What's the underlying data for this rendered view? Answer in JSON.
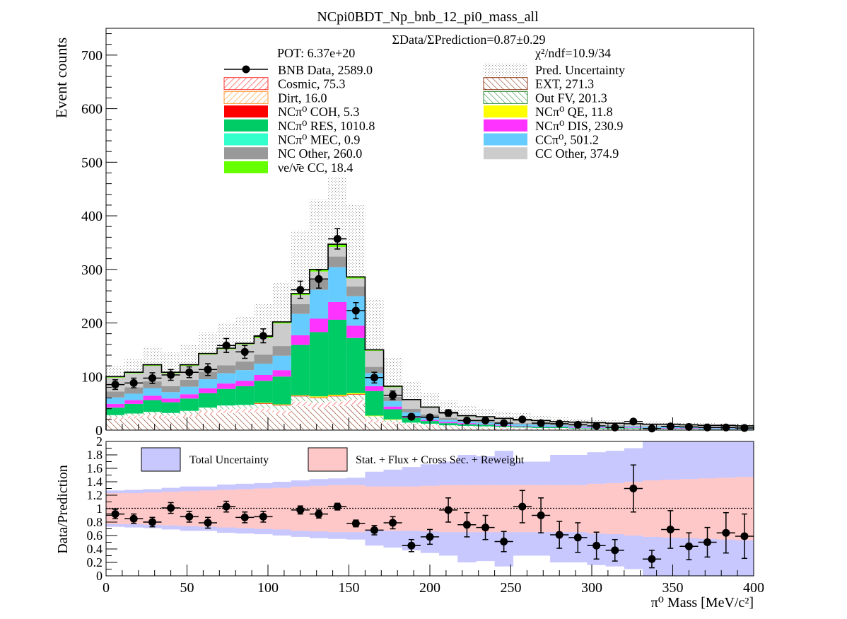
{
  "chart_data": [
    {
      "type": "bar",
      "stacked": true,
      "title": "NCpi0BDT_Np_bnb_12_pi0_mass_all",
      "ylabel": "Event counts",
      "ylim": [
        0,
        750
      ],
      "yticks": [
        0,
        100,
        200,
        300,
        400,
        500,
        600,
        700
      ],
      "xlim": [
        0,
        400
      ],
      "bin_edges": [
        0,
        11.43,
        22.86,
        34.29,
        45.71,
        57.14,
        68.57,
        80,
        91.43,
        102.86,
        114.29,
        125.71,
        137.14,
        148.57,
        160,
        171.43,
        182.86,
        194.29,
        205.71,
        217.14,
        228.57,
        240,
        251.43,
        262.86,
        274.29,
        285.71,
        297.14,
        308.57,
        320,
        331.43,
        342.86,
        354.29,
        365.71,
        377.14,
        388.57,
        400
      ],
      "bin_centers": [
        5.7,
        17.1,
        28.6,
        40,
        51.4,
        62.9,
        74.3,
        85.7,
        97.1,
        108.6,
        120,
        131.4,
        142.9,
        154.3,
        165.7,
        177.1,
        188.6,
        200,
        211.4,
        222.9,
        234.3,
        245.7,
        257.1,
        268.6,
        280,
        291.4,
        302.9,
        314.3,
        325.7,
        337.1,
        348.6,
        360,
        371.4,
        382.9,
        394.3
      ],
      "annotations": {
        "ratio_text": "ΣData/ΣPrediction=0.87±0.29",
        "pot": "POT: 6.37e+20",
        "chi2": "χ²/ndf=10.9/34"
      },
      "legend": [
        {
          "label": "BNB Data, 2589.0",
          "color": "#000000",
          "style": "marker"
        },
        {
          "label": "Pred. Uncertainty",
          "color": "#bdbdbd",
          "style": "dots"
        },
        {
          "label": "Cosmic, 75.3",
          "color": "#ff3333",
          "style": "hatch"
        },
        {
          "label": "EXT, 271.3",
          "color": "#8b3a1a",
          "style": "hatch"
        },
        {
          "label": "Dirt, 16.0",
          "color": "#ff9933",
          "style": "hatch"
        },
        {
          "label": "Out FV, 201.3",
          "color": "#2e8b3a",
          "style": "hatch"
        },
        {
          "label": "NCπ⁰ COH,  5.3",
          "color": "#ff0000",
          "style": "fill"
        },
        {
          "label": "NCπ⁰ QE,  11.8",
          "color": "#ffff00",
          "style": "fill"
        },
        {
          "label": "NCπ⁰ RES,  1010.8",
          "color": "#00cc66",
          "style": "fill"
        },
        {
          "label": "NCπ⁰ DIS,  230.9",
          "color": "#ff33ff",
          "style": "fill"
        },
        {
          "label": "NCπ⁰ MEC,  0.9",
          "color": "#33ffcc",
          "style": "fill"
        },
        {
          "label": "CCπ⁰, 501.2",
          "color": "#66ccff",
          "style": "fill"
        },
        {
          "label": "NC Other, 260.0",
          "color": "#999999",
          "style": "fill"
        },
        {
          "label": "CC Other, 374.9",
          "color": "#cccccc",
          "style": "fill"
        },
        {
          "label": "νe/ν̄e CC, 18.4",
          "color": "#66ff00",
          "style": "fill"
        }
      ],
      "stack_totals": [
        100,
        108,
        122,
        108,
        122,
        143,
        153,
        162,
        175,
        202,
        255,
        300,
        347,
        286,
        150,
        82,
        57,
        43,
        33,
        27,
        25,
        22,
        19,
        18,
        16,
        15,
        14,
        13,
        12,
        11,
        11,
        10,
        9,
        9,
        8
      ],
      "pred_uncertainty_upper": [
        120,
        132,
        155,
        145,
        160,
        182,
        200,
        212,
        235,
        275,
        372,
        430,
        472,
        420,
        245,
        135,
        90,
        70,
        55,
        45,
        40,
        35,
        32,
        28,
        25,
        22,
        20,
        18,
        16,
        16,
        15,
        14,
        13,
        12,
        12
      ],
      "series": [
        {
          "name": "EXT, 271.3",
          "values": [
            20,
            22,
            24,
            22,
            25,
            30,
            32,
            33,
            34,
            30,
            45,
            42,
            45,
            48,
            15,
            12,
            9,
            7,
            6,
            5,
            4,
            3,
            3,
            2,
            2,
            2,
            2,
            2,
            2,
            1,
            1,
            1,
            1,
            1,
            1
          ]
        },
        {
          "name": "Cosmic, 75.3",
          "values": [
            3,
            4,
            4,
            4,
            4,
            5,
            6,
            6,
            6,
            6,
            8,
            8,
            8,
            8,
            4,
            3,
            2,
            2,
            1,
            1,
            1,
            1,
            1,
            1,
            1,
            0,
            0,
            0,
            0,
            0,
            0,
            0,
            0,
            0,
            0
          ]
        },
        {
          "name": "Dirt, 16.0",
          "values": [
            1,
            1,
            1,
            1,
            1,
            1,
            1,
            1,
            1,
            1,
            1,
            1,
            1,
            1,
            1,
            0,
            0,
            0,
            0,
            0,
            0,
            0,
            0,
            0,
            0,
            0,
            0,
            0,
            0,
            0,
            0,
            0,
            0,
            0,
            0
          ]
        },
        {
          "name": "Out FV, 201.3",
          "values": [
            4,
            4,
            5,
            5,
            6,
            6,
            7,
            7,
            8,
            9,
            9,
            9,
            9,
            9,
            6,
            4,
            3,
            3,
            2,
            2,
            2,
            2,
            1,
            1,
            1,
            1,
            1,
            1,
            1,
            1,
            1,
            1,
            0,
            0,
            0
          ]
        },
        {
          "name": "NCπ⁰ COH,  5.3",
          "values": [
            0,
            0,
            0,
            0,
            0,
            0,
            0,
            0,
            1,
            1,
            1,
            1,
            1,
            1,
            0,
            0,
            0,
            0,
            0,
            0,
            0,
            0,
            0,
            0,
            0,
            0,
            0,
            0,
            0,
            0,
            0,
            0,
            0,
            0,
            0
          ]
        },
        {
          "name": "NCπ⁰ QE,  11.8",
          "values": [
            0,
            0,
            0,
            0,
            0,
            0,
            0,
            0,
            1,
            1,
            1,
            2,
            2,
            2,
            1,
            1,
            0,
            0,
            0,
            0,
            0,
            0,
            0,
            0,
            0,
            0,
            0,
            0,
            0,
            0,
            0,
            0,
            0,
            0,
            0
          ]
        },
        {
          "name": "NCπ⁰ RES,  1010.8",
          "values": [
            14,
            18,
            22,
            20,
            23,
            27,
            31,
            35,
            41,
            52,
            94,
            120,
            140,
            103,
            46,
            19,
            9,
            5,
            4,
            3,
            3,
            2,
            2,
            2,
            2,
            1,
            1,
            1,
            1,
            1,
            1,
            1,
            1,
            1,
            1
          ]
        },
        {
          "name": "NCπ⁰ DIS,  230.9",
          "values": [
            7,
            7,
            8,
            7,
            8,
            9,
            10,
            10,
            11,
            12,
            18,
            25,
            33,
            23,
            9,
            5,
            3,
            2,
            2,
            2,
            1,
            1,
            1,
            1,
            1,
            1,
            1,
            1,
            1,
            1,
            1,
            1,
            1,
            1,
            1
          ]
        },
        {
          "name": "NCπ⁰ MEC,  0.9",
          "values": [
            0,
            0,
            0,
            0,
            0,
            0,
            0,
            0,
            0,
            0,
            0,
            0,
            0,
            0,
            0,
            0,
            0,
            0,
            0,
            0,
            0,
            0,
            0,
            0,
            0,
            0,
            0,
            0,
            0,
            0,
            0,
            0,
            0,
            0,
            0
          ]
        },
        {
          "name": "CCπ⁰, 501.2",
          "values": [
            12,
            12,
            14,
            12,
            14,
            17,
            19,
            20,
            21,
            27,
            40,
            54,
            65,
            55,
            24,
            10,
            7,
            5,
            4,
            3,
            3,
            3,
            3,
            3,
            2,
            2,
            2,
            2,
            2,
            2,
            2,
            2,
            2,
            2,
            2
          ]
        },
        {
          "name": "NC Other, 260.0",
          "values": [
            11,
            12,
            13,
            11,
            13,
            14,
            15,
            16,
            17,
            18,
            18,
            19,
            20,
            18,
            12,
            8,
            7,
            5,
            4,
            3,
            3,
            3,
            2,
            2,
            2,
            2,
            2,
            2,
            1,
            1,
            1,
            1,
            1,
            1,
            1
          ]
        },
        {
          "name": "CC Other, 374.9",
          "values": [
            26,
            26,
            29,
            24,
            26,
            32,
            30,
            32,
            31,
            42,
            17,
            15,
            18,
            15,
            30,
            18,
            16,
            13,
            9,
            7,
            7,
            6,
            5,
            5,
            4,
            5,
            4,
            3,
            3,
            3,
            3,
            2,
            2,
            2,
            1
          ]
        },
        {
          "name": "νe/ν̄e CC, 18.4",
          "values": [
            2,
            2,
            2,
            2,
            2,
            2,
            2,
            2,
            3,
            3,
            3,
            4,
            5,
            4,
            2,
            2,
            1,
            1,
            1,
            1,
            1,
            1,
            1,
            1,
            1,
            1,
            1,
            1,
            1,
            1,
            1,
            1,
            1,
            1,
            1
          ]
        }
      ],
      "data_points": {
        "name": "BNB Data, 2589.0",
        "values": [
          85,
          88,
          97,
          103,
          108,
          113,
          158,
          146,
          176,
          0,
          262,
          282,
          357,
          223,
          98,
          65,
          25,
          24,
          32,
          18,
          18,
          13,
          20,
          13,
          12,
          10,
          8,
          5,
          16,
          3,
          7,
          6,
          5,
          5,
          4
        ],
        "errors": [
          9,
          9,
          10,
          10,
          10,
          11,
          13,
          12,
          13,
          0,
          16,
          17,
          19,
          15,
          10,
          8,
          5,
          5,
          6,
          4,
          4,
          4,
          4,
          4,
          3,
          3,
          3,
          2,
          4,
          2,
          3,
          2,
          2,
          2,
          2
        ]
      }
    },
    {
      "type": "scatter",
      "ylabel": "Data/Prediction",
      "xlabel": "π⁰ Mass [MeV/c²]",
      "xlim": [
        0,
        400
      ],
      "xticks": [
        0,
        50,
        100,
        150,
        200,
        250,
        300,
        350,
        400
      ],
      "ylim": [
        0,
        2
      ],
      "yticks": [
        0,
        0.2,
        0.4,
        0.6,
        0.8,
        1,
        1.2,
        1.4,
        1.6,
        1.8,
        2
      ],
      "ytick_labels": [
        "0",
        "0.2",
        "0.4",
        "0.6",
        "0.8",
        "1",
        "1.2",
        "1.4",
        "1.6",
        "1.8",
        "2"
      ],
      "reference_line": 1,
      "legend": [
        {
          "label": "Total Uncertainty",
          "color": "#c8c8ff"
        },
        {
          "label": "Stat. + Flux + Cross Sec. + Reweight",
          "color": "#ffc8c8"
        }
      ],
      "total_uncertainty_half_width": [
        0.27,
        0.28,
        0.29,
        0.31,
        0.33,
        0.33,
        0.36,
        0.37,
        0.38,
        0.4,
        0.42,
        0.44,
        0.45,
        0.46,
        0.55,
        0.58,
        0.62,
        0.66,
        0.7,
        0.8,
        0.78,
        0.86,
        0.7,
        0.7,
        0.8,
        0.8,
        0.84,
        0.86,
        0.9,
        1,
        1,
        1,
        1,
        1,
        1
      ],
      "syst_uncertainty_half_width": [
        0.23,
        0.23,
        0.24,
        0.25,
        0.26,
        0.27,
        0.28,
        0.29,
        0.3,
        0.31,
        0.33,
        0.34,
        0.35,
        0.35,
        0.33,
        0.33,
        0.33,
        0.34,
        0.35,
        0.35,
        0.35,
        0.35,
        0.35,
        0.35,
        0.35,
        0.35,
        0.37,
        0.38,
        0.4,
        0.42,
        0.43,
        0.44,
        0.45,
        0.46,
        0.47
      ],
      "values": [
        0.92,
        0.85,
        0.8,
        1.01,
        0.88,
        0.79,
        1.03,
        0.87,
        0.88,
        null,
        0.98,
        0.92,
        1.03,
        0.78,
        0.68,
        0.79,
        0.45,
        0.58,
        0.98,
        0.76,
        0.72,
        0.51,
        1.03,
        0.9,
        0.61,
        0.57,
        0.45,
        0.38,
        1.3,
        0.25,
        0.69,
        0.44,
        0.5,
        0.64,
        0.59
      ],
      "errors": [
        0.07,
        0.07,
        0.07,
        0.08,
        0.08,
        0.08,
        0.08,
        0.08,
        0.08,
        0,
        0.06,
        0.06,
        0.05,
        0.05,
        0.07,
        0.09,
        0.09,
        0.11,
        0.18,
        0.18,
        0.18,
        0.15,
        0.24,
        0.26,
        0.2,
        0.22,
        0.2,
        0.16,
        0.35,
        0.13,
        0.28,
        0.2,
        0.22,
        0.3,
        0.33
      ]
    }
  ]
}
